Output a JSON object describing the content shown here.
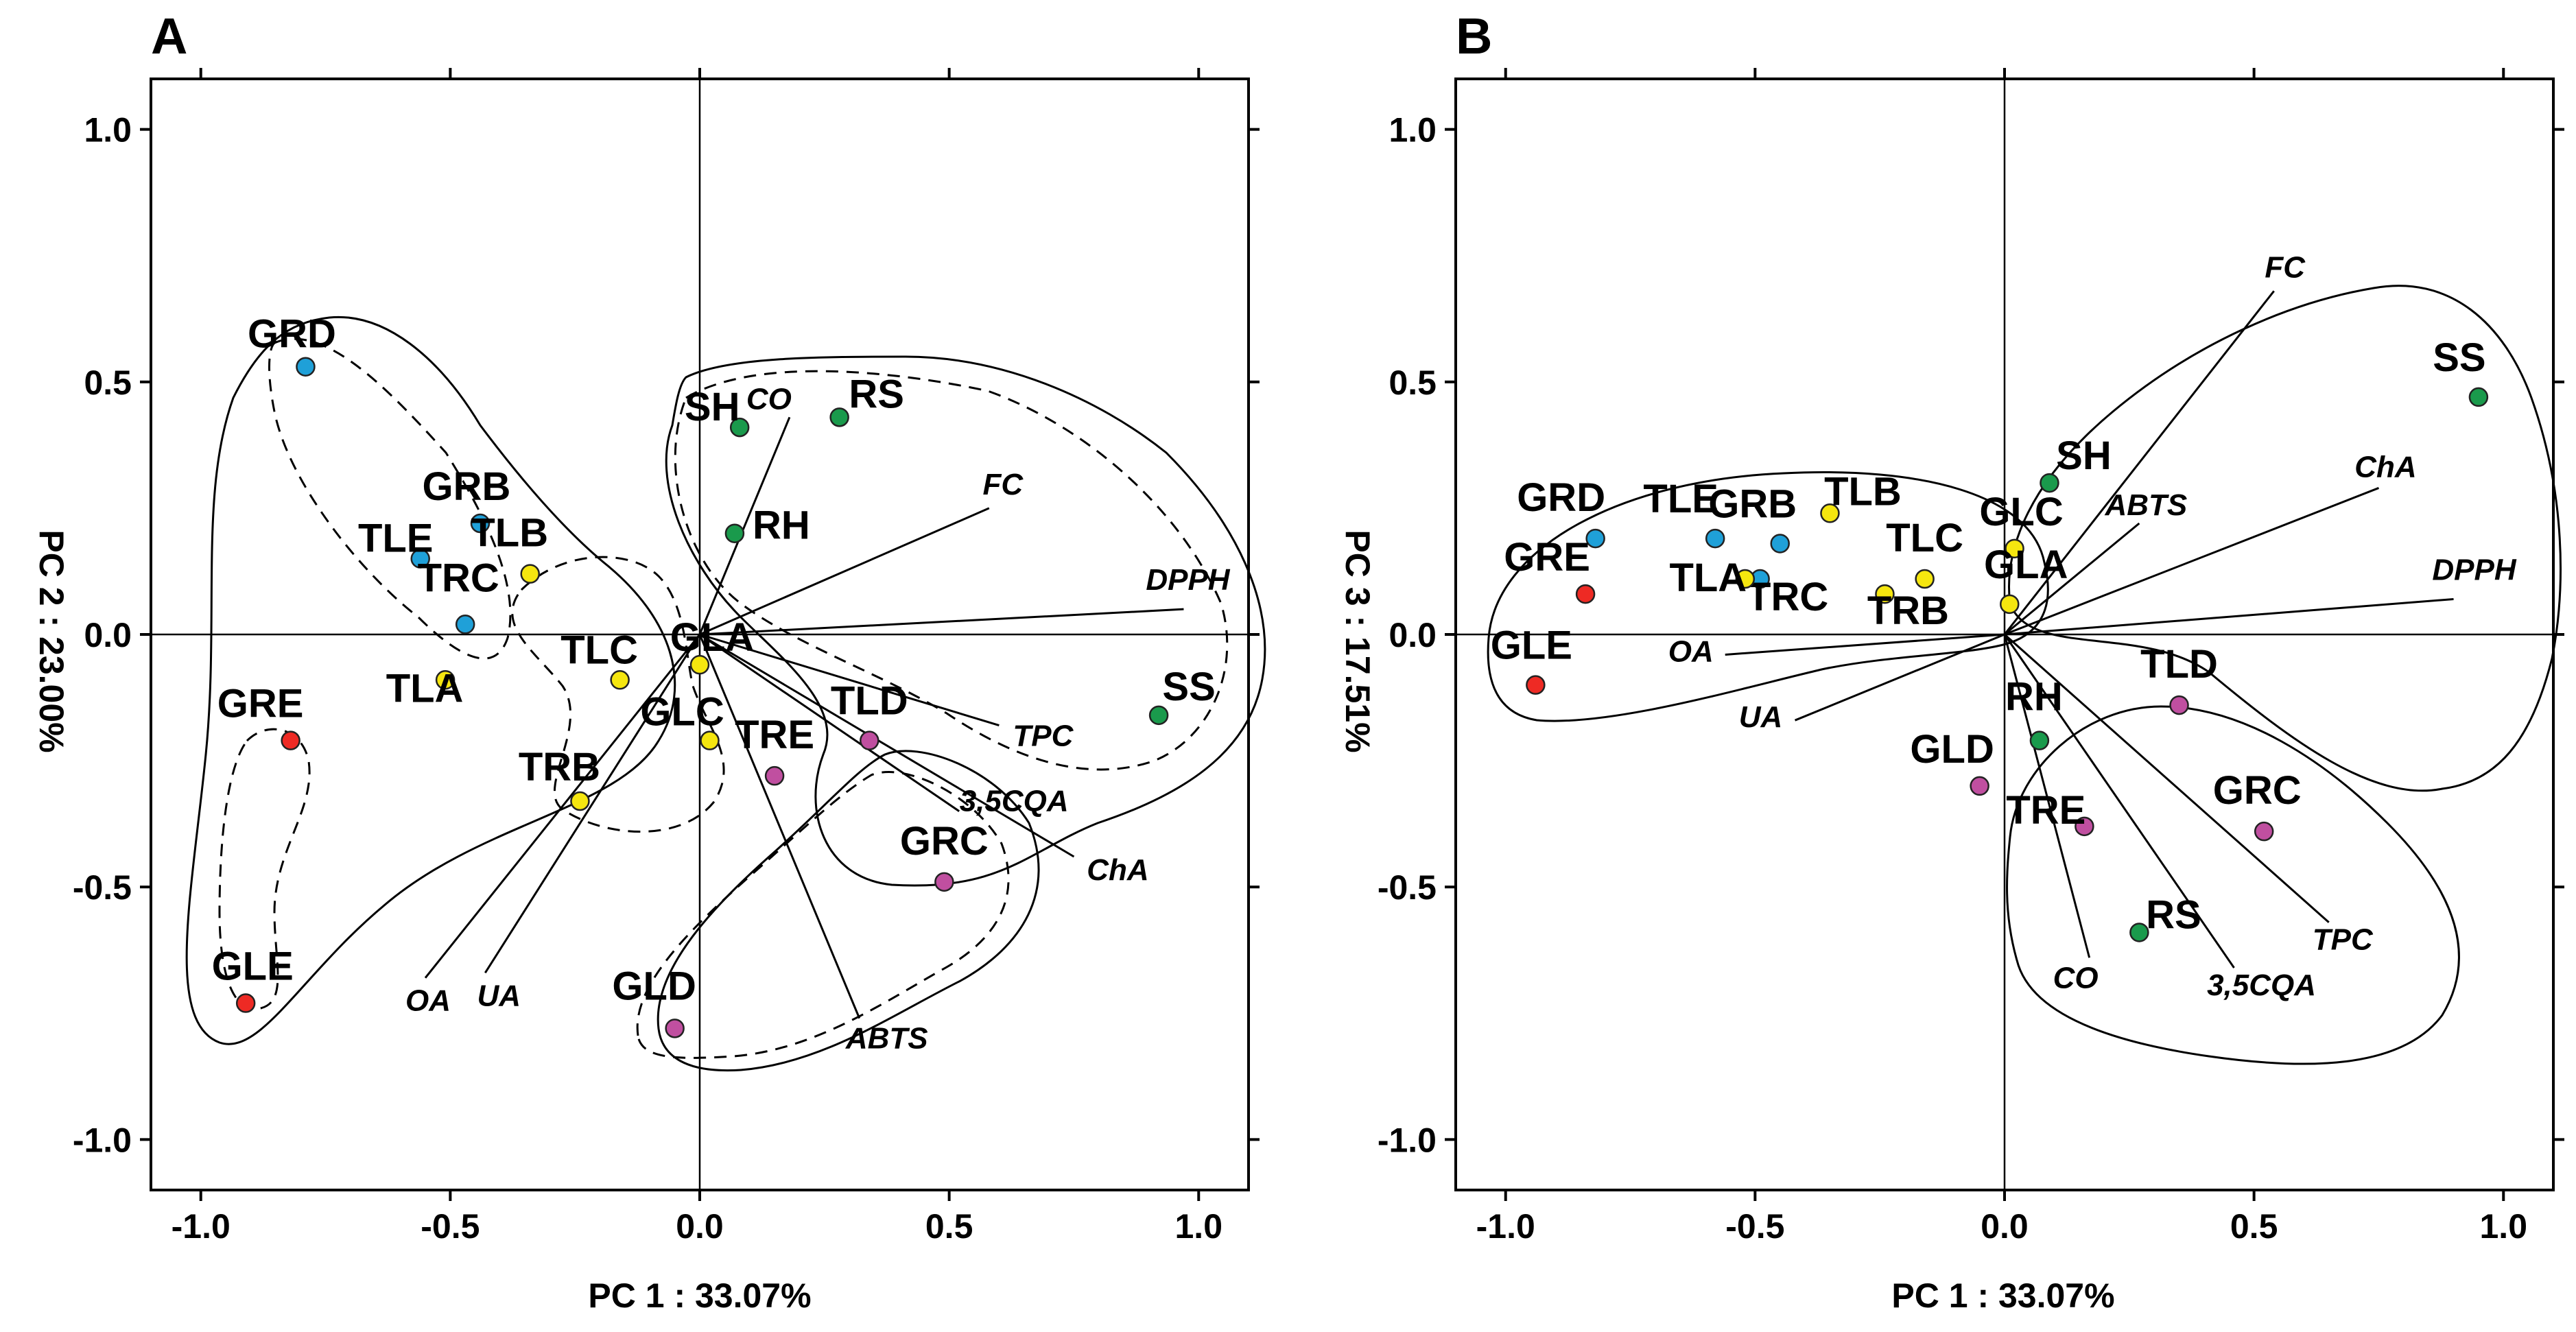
{
  "figure_title": "",
  "colors": {
    "blue": "#1fa0d8",
    "yellow": "#f5e60f",
    "red": "#ee2a24",
    "magenta": "#c04fa0",
    "green": "#1a9a4c"
  },
  "chart_data": [
    {
      "type": "scatter",
      "panel_label": "A",
      "xlabel": "PC 1 : 33.07%",
      "ylabel": "PC 2 : 23.00%",
      "xlim": [
        -1.1,
        1.1
      ],
      "ylim": [
        -1.1,
        1.1
      ],
      "xticks": [
        -1.0,
        -0.5,
        0.0,
        0.5,
        1.0
      ],
      "yticks": [
        -1.0,
        -0.5,
        0.0,
        0.5,
        1.0
      ],
      "xtick_labels": [
        "-1.0",
        "-0.5",
        "0.0",
        "0.5",
        "1.0"
      ],
      "ytick_labels": [
        "-1.0",
        "-0.5",
        "0.0",
        "0.5",
        "1.0"
      ],
      "points": [
        {
          "label": "GRD",
          "x": -0.79,
          "y": 0.53,
          "color": "blue"
        },
        {
          "label": "GRB",
          "x": -0.44,
          "y": 0.22,
          "color": "blue"
        },
        {
          "label": "TLE",
          "x": -0.56,
          "y": 0.15,
          "color": "blue"
        },
        {
          "label": "TRC",
          "x": -0.47,
          "y": 0.02,
          "color": "blue"
        },
        {
          "label": "TLB",
          "x": -0.34,
          "y": 0.12,
          "color": "yellow"
        },
        {
          "label": "TLA",
          "x": -0.51,
          "y": -0.09,
          "color": "yellow"
        },
        {
          "label": "TLC",
          "x": -0.16,
          "y": -0.09,
          "color": "yellow"
        },
        {
          "label": "GLA",
          "x": 0.0,
          "y": -0.06,
          "color": "yellow"
        },
        {
          "label": "GLC",
          "x": 0.02,
          "y": -0.21,
          "color": "yellow"
        },
        {
          "label": "TRB",
          "x": -0.24,
          "y": -0.33,
          "color": "yellow"
        },
        {
          "label": "GRE",
          "x": -0.82,
          "y": -0.21,
          "color": "red"
        },
        {
          "label": "GLE",
          "x": -0.91,
          "y": -0.73,
          "color": "red"
        },
        {
          "label": "TLD",
          "x": 0.34,
          "y": -0.21,
          "color": "magenta"
        },
        {
          "label": "TRE",
          "x": 0.15,
          "y": -0.28,
          "color": "magenta"
        },
        {
          "label": "GRC",
          "x": 0.49,
          "y": -0.49,
          "color": "magenta"
        },
        {
          "label": "GLD",
          "x": -0.05,
          "y": -0.78,
          "color": "magenta"
        },
        {
          "label": "SH",
          "x": 0.08,
          "y": 0.41,
          "color": "green"
        },
        {
          "label": "RS",
          "x": 0.28,
          "y": 0.43,
          "color": "green"
        },
        {
          "label": "RH",
          "x": 0.07,
          "y": 0.2,
          "color": "green"
        },
        {
          "label": "SS",
          "x": 0.92,
          "y": -0.16,
          "color": "green"
        }
      ],
      "vectors": [
        {
          "label": "CO",
          "x": 0.18,
          "y": 0.43
        },
        {
          "label": "FC",
          "x": 0.58,
          "y": 0.25
        },
        {
          "label": "DPPH",
          "x": 0.97,
          "y": 0.05
        },
        {
          "label": "TPC",
          "x": 0.6,
          "y": -0.18
        },
        {
          "label": "3,5CQA",
          "x": 0.52,
          "y": -0.35
        },
        {
          "label": "ChA",
          "x": 0.75,
          "y": -0.44
        },
        {
          "label": "ABTS",
          "x": 0.32,
          "y": -0.76
        },
        {
          "label": "OA",
          "x": -0.55,
          "y": -0.68
        },
        {
          "label": "UA",
          "x": -0.43,
          "y": -0.67
        }
      ]
    },
    {
      "type": "scatter",
      "panel_label": "B",
      "xlabel": "PC 1 : 33.07%",
      "ylabel": "PC 3 : 17.51%",
      "xlim": [
        -1.1,
        1.1
      ],
      "ylim": [
        -1.1,
        1.1
      ],
      "xticks": [
        -1.0,
        -0.5,
        0.0,
        0.5,
        1.0
      ],
      "yticks": [
        -1.0,
        -0.5,
        0.0,
        0.5,
        1.0
      ],
      "xtick_labels": [
        "-1.0",
        "-0.5",
        "0.0",
        "0.5",
        "1.0"
      ],
      "ytick_labels": [
        "-1.0",
        "-0.5",
        "0.0",
        "0.5",
        "1.0"
      ],
      "points": [
        {
          "label": "GRD",
          "x": -0.82,
          "y": 0.19,
          "color": "blue"
        },
        {
          "label": "TLE",
          "x": -0.58,
          "y": 0.19,
          "color": "blue"
        },
        {
          "label": "GRB",
          "x": -0.45,
          "y": 0.18,
          "color": "blue"
        },
        {
          "label": "TRC",
          "x": -0.49,
          "y": 0.11,
          "color": "blue"
        },
        {
          "label": "TLB",
          "x": -0.35,
          "y": 0.24,
          "color": "yellow"
        },
        {
          "label": "TLA",
          "x": -0.52,
          "y": 0.11,
          "color": "yellow"
        },
        {
          "label": "TLC",
          "x": -0.16,
          "y": 0.11,
          "color": "yellow"
        },
        {
          "label": "TRB",
          "x": -0.24,
          "y": 0.08,
          "color": "yellow"
        },
        {
          "label": "GLC",
          "x": 0.02,
          "y": 0.17,
          "color": "yellow"
        },
        {
          "label": "GLA",
          "x": 0.01,
          "y": 0.06,
          "color": "yellow"
        },
        {
          "label": "GRE",
          "x": -0.84,
          "y": 0.08,
          "color": "red"
        },
        {
          "label": "GLE",
          "x": -0.94,
          "y": -0.1,
          "color": "red"
        },
        {
          "label": "TLD",
          "x": 0.35,
          "y": -0.14,
          "color": "magenta"
        },
        {
          "label": "GRC",
          "x": 0.52,
          "y": -0.39,
          "color": "magenta"
        },
        {
          "label": "TRE",
          "x": 0.16,
          "y": -0.38,
          "color": "magenta"
        },
        {
          "label": "GLD",
          "x": -0.05,
          "y": -0.3,
          "color": "magenta"
        },
        {
          "label": "SS",
          "x": 0.95,
          "y": 0.47,
          "color": "green"
        },
        {
          "label": "SH",
          "x": 0.09,
          "y": 0.3,
          "color": "green"
        },
        {
          "label": "RH",
          "x": 0.07,
          "y": -0.21,
          "color": "green"
        },
        {
          "label": "RS",
          "x": 0.27,
          "y": -0.59,
          "color": "green"
        }
      ],
      "vectors": [
        {
          "label": "FC",
          "x": 0.54,
          "y": 0.68
        },
        {
          "label": "ChA",
          "x": 0.75,
          "y": 0.29
        },
        {
          "label": "ABTS",
          "x": 0.27,
          "y": 0.22
        },
        {
          "label": "DPPH",
          "x": 0.9,
          "y": 0.07
        },
        {
          "label": "OA",
          "x": -0.56,
          "y": -0.04
        },
        {
          "label": "UA",
          "x": -0.42,
          "y": -0.17
        },
        {
          "label": "TPC",
          "x": 0.65,
          "y": -0.57
        },
        {
          "label": "3,5CQA",
          "x": 0.46,
          "y": -0.66
        },
        {
          "label": "CO",
          "x": 0.17,
          "y": -0.64
        }
      ]
    }
  ]
}
